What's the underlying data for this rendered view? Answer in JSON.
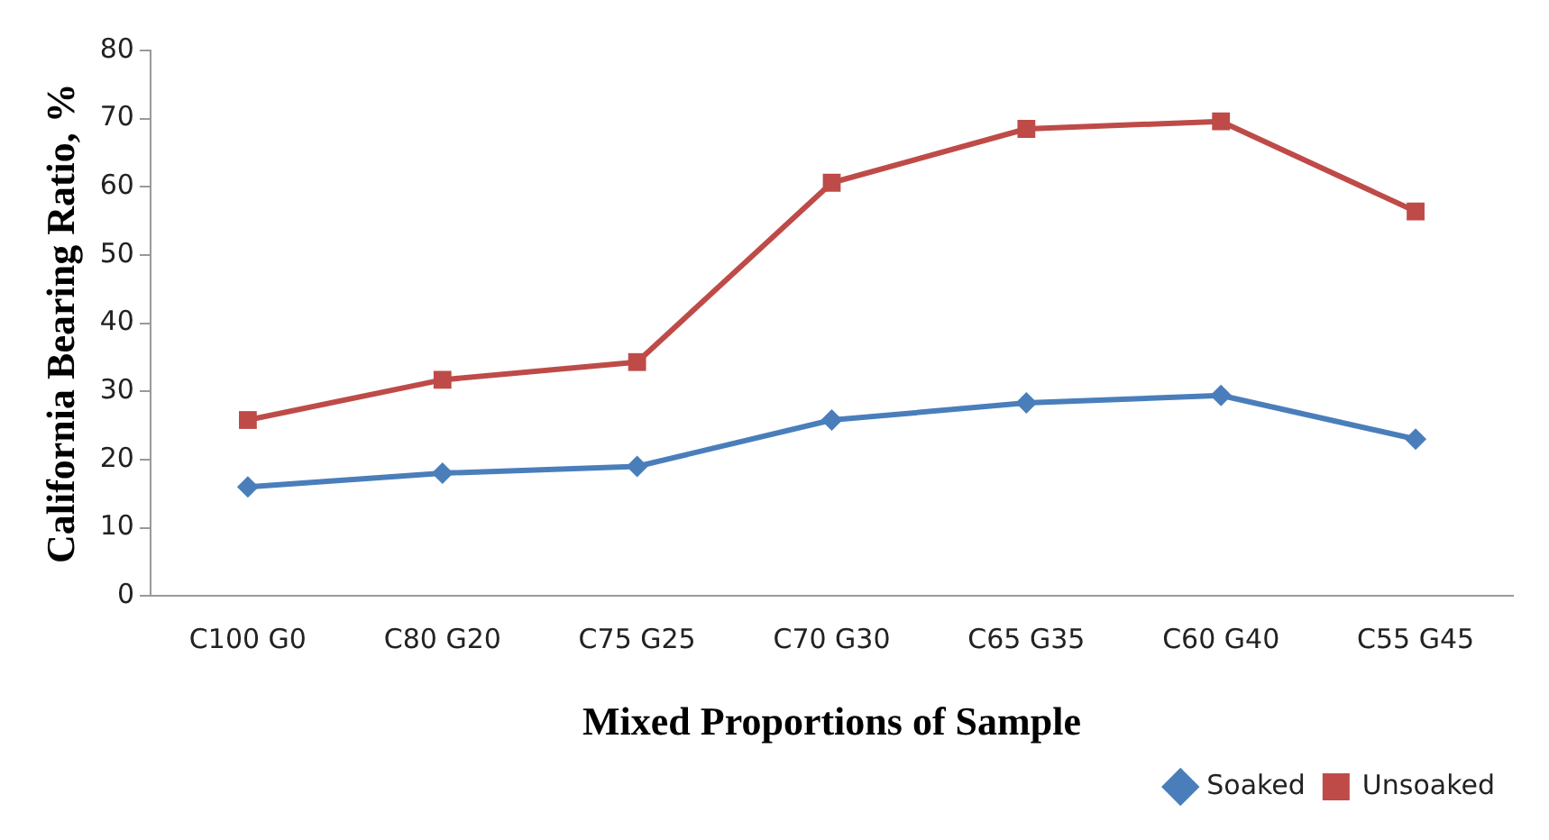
{
  "chart_data": {
    "type": "line",
    "xlabel": "Mixed Proportions of Sample",
    "ylabel": "California Bearing Ratio, %",
    "categories": [
      "C100 G0",
      "C80 G20",
      "C75 G25",
      "C70 G30",
      "C65 G35",
      "C60 G40",
      "C55 G45"
    ],
    "series": [
      {
        "name": "Soaked",
        "color": "#4a7ebb",
        "marker": "diamond",
        "values": [
          16,
          18,
          19,
          25.8,
          28.3,
          29.4,
          23
        ]
      },
      {
        "name": "Unsoaked",
        "color": "#be4b48",
        "marker": "square",
        "values": [
          25.8,
          31.7,
          34.3,
          60.6,
          68.5,
          69.6,
          56.4
        ]
      }
    ],
    "ylim": [
      0,
      80
    ],
    "yticks": [
      0,
      10,
      20,
      30,
      40,
      50,
      60,
      70,
      80
    ],
    "grid": false,
    "legend": "bottom right",
    "line_style": "solid"
  }
}
